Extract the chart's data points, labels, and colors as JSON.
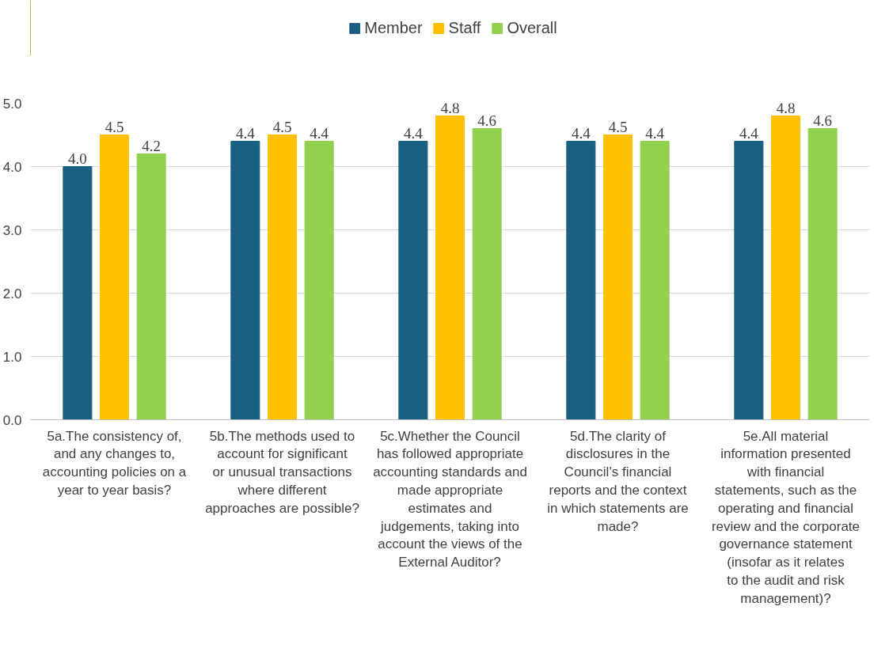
{
  "chart_data": {
    "type": "bar",
    "categories": [
      "5a.The consistency of, and any changes to, accounting policies on a year to year basis?",
      "5b.The methods used to account for significant or unusual transactions where different approaches are possible?",
      "5c.Whether the Council has followed appropriate accounting standards and made appropriate estimates and judgements, taking into account the views of the External Auditor?",
      "5d.The clarity of disclosures in the Council’s financial reports and the context in which statements are made?",
      "5e.All material information presented with financial statements, such as the operating and financial review and the corporate governance statement (insofar as it relates to the audit and risk management)?"
    ],
    "series": [
      {
        "name": "Member",
        "color": "#1a5e80",
        "values": [
          4.0,
          4.4,
          4.4,
          4.4,
          4.4
        ],
        "value_labels": [
          "4.0",
          "4.4",
          "4.4",
          "4.4",
          "4.4"
        ]
      },
      {
        "name": "Staff",
        "color": "#ffc000",
        "values": [
          4.5,
          4.5,
          4.8,
          4.5,
          4.8
        ],
        "value_labels": [
          "4.5",
          "4.5",
          "4.8",
          "4.5",
          "4.8"
        ]
      },
      {
        "name": "Overall",
        "color": "#92d050",
        "values": [
          4.2,
          4.4,
          4.6,
          4.4,
          4.6
        ],
        "value_labels": [
          "4.2",
          "4.4",
          "4.6",
          "4.4",
          "4.6"
        ]
      }
    ],
    "ylim": [
      0,
      5
    ],
    "yticks": [
      {
        "value": 0,
        "label": "0.0"
      },
      {
        "value": 1,
        "label": "1.0"
      },
      {
        "value": 2,
        "label": "2.0"
      },
      {
        "value": 3,
        "label": "3.0"
      },
      {
        "value": 4,
        "label": "4.0"
      },
      {
        "value": 5,
        "label": "5.0"
      }
    ],
    "grid": "y",
    "legend": "top"
  }
}
